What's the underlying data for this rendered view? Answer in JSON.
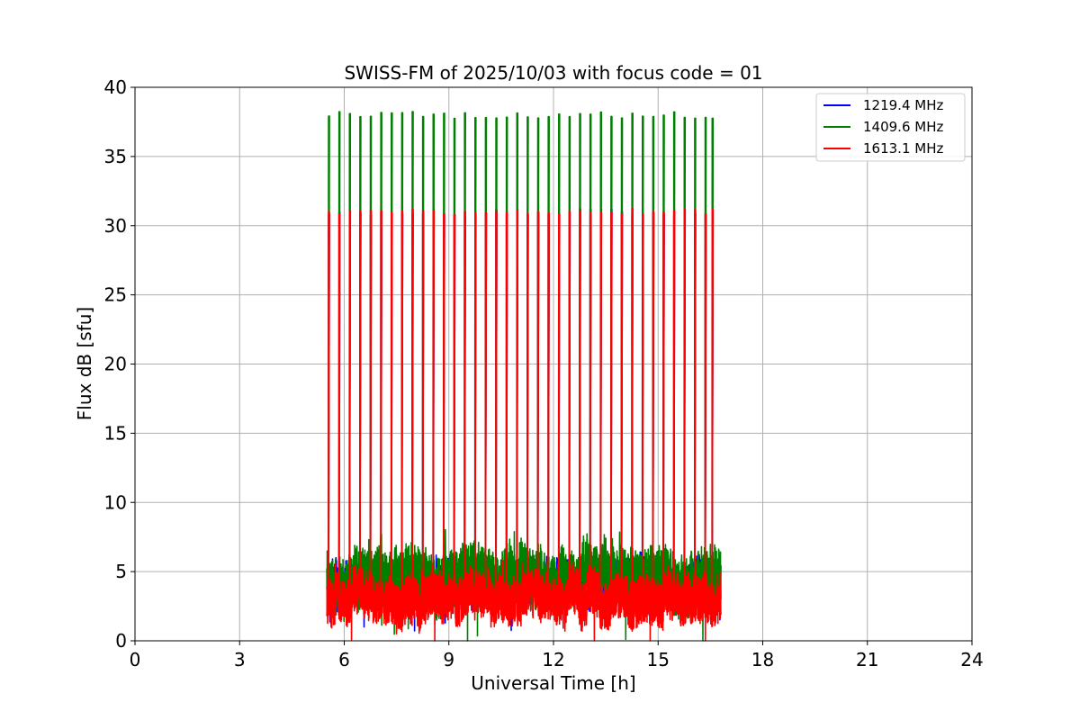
{
  "chart_data": {
    "type": "line",
    "title": "SWISS-FM of 2025/10/03 with focus code = 01",
    "xlabel": "Universal Time [h]",
    "ylabel": "Flux dB [sfu]",
    "xlim": [
      0,
      24
    ],
    "ylim": [
      0,
      40
    ],
    "x_ticks": [
      0,
      3,
      6,
      9,
      12,
      15,
      18,
      21,
      24
    ],
    "y_ticks": [
      0,
      5,
      10,
      15,
      20,
      25,
      30,
      35,
      40
    ],
    "grid": true,
    "legend_position": "top-right",
    "data_start_h": 5.5,
    "data_end_h": 16.8,
    "calibration_pulse_times_h": [
      5.55,
      5.85,
      6.15,
      6.45,
      6.75,
      7.05,
      7.35,
      7.65,
      7.95,
      8.25,
      8.55,
      8.85,
      9.15,
      9.45,
      9.75,
      10.05,
      10.35,
      10.65,
      10.95,
      11.25,
      11.55,
      11.85,
      12.15,
      12.45,
      12.75,
      13.05,
      13.35,
      13.65,
      13.95,
      14.25,
      14.55,
      14.85,
      15.15,
      15.45,
      15.75,
      16.05,
      16.35,
      16.55
    ],
    "series": [
      {
        "name": "1219.4 MHz",
        "color": "#0000ff",
        "pulse_peak": 31.0,
        "baseline_min": 2.5,
        "baseline_max": 5.5,
        "baseline_mean": 4.3
      },
      {
        "name": "1409.6 MHz",
        "color": "#008000",
        "pulse_peak": 38.0,
        "baseline_min": 1.5,
        "baseline_max": 7.3,
        "baseline_mean": 4.6
      },
      {
        "name": "1613.1 MHz",
        "color": "#ff0000",
        "pulse_peak": 31.0,
        "baseline_min": 0.5,
        "baseline_max": 5.0,
        "baseline_mean": 3.0
      }
    ]
  }
}
